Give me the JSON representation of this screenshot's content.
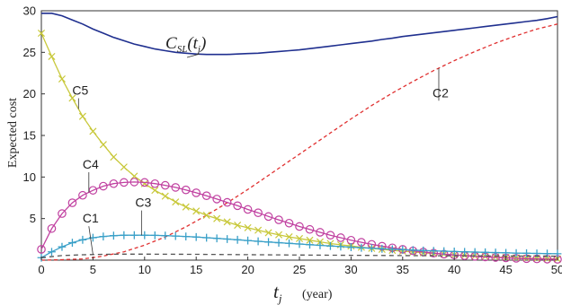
{
  "chart_data": {
    "type": "line",
    "title": "",
    "ylabel": "Expected cost",
    "xlabel_main": "t",
    "xlabel_sub": "j",
    "xlabel_unit": "(year)",
    "xlim": [
      0,
      50
    ],
    "ylim": [
      0,
      30
    ],
    "xticks": [
      0,
      5,
      10,
      15,
      20,
      25,
      30,
      35,
      40,
      45,
      50
    ],
    "yticks": [
      5,
      10,
      15,
      20,
      25,
      30
    ],
    "grid": false,
    "legend": "none",
    "series": [
      {
        "name": "CSL(tj)",
        "label_main": "C",
        "label_sub": "SL",
        "label_tail": "(t",
        "label_tail_sub": "j",
        "label_close": ")",
        "color": "#1f2f8f",
        "dash": "solid",
        "marker": "none",
        "x": [
          0,
          1,
          2,
          3,
          4,
          5,
          6,
          7,
          8,
          9,
          10,
          11,
          12,
          13,
          14,
          15,
          16,
          17,
          18,
          19,
          20,
          21,
          22,
          23,
          24,
          25,
          26,
          27,
          28,
          29,
          30,
          31,
          32,
          33,
          34,
          35,
          36,
          37,
          38,
          39,
          40,
          41,
          42,
          43,
          44,
          45,
          46,
          47,
          48,
          49,
          50
        ],
        "values": [
          29.7,
          29.7,
          29.4,
          28.9,
          28.4,
          27.8,
          27.3,
          26.8,
          26.4,
          26.0,
          25.7,
          25.4,
          25.2,
          25.0,
          24.9,
          24.8,
          24.75,
          24.75,
          24.75,
          24.8,
          24.85,
          24.9,
          25.0,
          25.1,
          25.2,
          25.3,
          25.45,
          25.6,
          25.75,
          25.9,
          26.05,
          26.2,
          26.35,
          26.55,
          26.7,
          26.9,
          27.05,
          27.2,
          27.35,
          27.5,
          27.65,
          27.8,
          27.95,
          28.1,
          28.25,
          28.4,
          28.55,
          28.7,
          28.85,
          29.05,
          29.3
        ]
      },
      {
        "name": "C2",
        "color": "#e03030",
        "dash": "dashed",
        "marker": "none",
        "x": [
          0,
          2,
          4,
          5,
          6,
          8,
          10,
          12,
          14,
          16,
          18,
          20,
          22,
          24,
          26,
          28,
          30,
          32,
          34,
          36,
          38,
          40,
          42,
          44,
          46,
          48,
          50
        ],
        "values": [
          0.0,
          0.05,
          0.15,
          0.3,
          0.5,
          1.0,
          1.8,
          2.8,
          4.0,
          5.4,
          6.9,
          8.5,
          10.2,
          11.9,
          13.6,
          15.3,
          17.0,
          18.6,
          20.1,
          21.5,
          22.8,
          24.0,
          25.1,
          26.1,
          27.0,
          27.8,
          28.4
        ]
      },
      {
        "name": "C5",
        "color": "#c8c83a",
        "dash": "solid",
        "marker": "x",
        "x": [
          0,
          1,
          2,
          3,
          4,
          5,
          6,
          7,
          8,
          9,
          10,
          11,
          12,
          13,
          14,
          15,
          16,
          17,
          18,
          19,
          20,
          21,
          22,
          23,
          24,
          25,
          26,
          27,
          28,
          29,
          30,
          31,
          32,
          33,
          34,
          35,
          36,
          37,
          38,
          39,
          40,
          41,
          42,
          43,
          44,
          45,
          46,
          47,
          48,
          49,
          50
        ],
        "values": [
          27.3,
          24.5,
          21.8,
          19.5,
          17.3,
          15.5,
          13.9,
          12.4,
          11.2,
          10.1,
          9.2,
          8.4,
          7.7,
          7.0,
          6.4,
          5.9,
          5.4,
          5.0,
          4.6,
          4.2,
          3.9,
          3.6,
          3.3,
          3.05,
          2.8,
          2.6,
          2.4,
          2.2,
          2.0,
          1.85,
          1.7,
          1.55,
          1.42,
          1.3,
          1.18,
          1.08,
          0.98,
          0.88,
          0.8,
          0.72,
          0.64,
          0.57,
          0.5,
          0.44,
          0.38,
          0.33,
          0.28,
          0.24,
          0.2,
          0.17,
          0.14
        ]
      },
      {
        "name": "C4",
        "color": "#c040a0",
        "dash": "solid",
        "marker": "circle",
        "x": [
          0,
          1,
          2,
          3,
          4,
          5,
          6,
          7,
          8,
          9,
          10,
          11,
          12,
          13,
          14,
          15,
          16,
          17,
          18,
          19,
          20,
          21,
          22,
          23,
          24,
          25,
          26,
          27,
          28,
          29,
          30,
          31,
          32,
          33,
          34,
          35,
          36,
          37,
          38,
          39,
          40,
          41,
          42,
          43,
          44,
          45,
          46,
          47,
          48,
          49,
          50
        ],
        "values": [
          1.3,
          3.8,
          5.6,
          6.9,
          7.8,
          8.4,
          8.9,
          9.2,
          9.35,
          9.4,
          9.35,
          9.2,
          9.0,
          8.75,
          8.45,
          8.1,
          7.75,
          7.35,
          6.95,
          6.55,
          6.1,
          5.7,
          5.25,
          4.85,
          4.45,
          4.05,
          3.7,
          3.35,
          3.0,
          2.7,
          2.4,
          2.15,
          1.9,
          1.68,
          1.48,
          1.3,
          1.12,
          0.98,
          0.84,
          0.72,
          0.62,
          0.53,
          0.45,
          0.38,
          0.32,
          0.27,
          0.22,
          0.18,
          0.15,
          0.12,
          0.1
        ]
      },
      {
        "name": "C3",
        "color": "#3aa0c8",
        "dash": "solid",
        "marker": "plus",
        "x": [
          0,
          1,
          2,
          3,
          4,
          5,
          6,
          7,
          8,
          9,
          10,
          11,
          12,
          13,
          14,
          15,
          16,
          17,
          18,
          19,
          20,
          21,
          22,
          23,
          24,
          25,
          26,
          27,
          28,
          29,
          30,
          31,
          32,
          33,
          34,
          35,
          36,
          37,
          38,
          39,
          40,
          41,
          42,
          43,
          44,
          45,
          46,
          47,
          48,
          49,
          50
        ],
        "values": [
          0.3,
          1.0,
          1.6,
          2.1,
          2.45,
          2.7,
          2.85,
          2.95,
          3.0,
          3.0,
          3.0,
          2.98,
          2.95,
          2.9,
          2.85,
          2.78,
          2.7,
          2.62,
          2.54,
          2.45,
          2.36,
          2.27,
          2.18,
          2.1,
          2.02,
          1.94,
          1.86,
          1.78,
          1.7,
          1.63,
          1.56,
          1.49,
          1.43,
          1.37,
          1.31,
          1.26,
          1.21,
          1.16,
          1.12,
          1.08,
          1.04,
          1.0,
          0.97,
          0.94,
          0.91,
          0.88,
          0.85,
          0.83,
          0.81,
          0.79,
          0.77
        ]
      },
      {
        "name": "C1",
        "color": "#555555",
        "dash": "dashed",
        "marker": "none",
        "x": [
          0,
          2,
          4,
          6,
          8,
          10,
          15,
          20,
          25,
          30,
          35,
          40,
          45,
          50
        ],
        "values": [
          0.3,
          0.55,
          0.65,
          0.7,
          0.72,
          0.72,
          0.7,
          0.66,
          0.62,
          0.58,
          0.55,
          0.52,
          0.5,
          0.48
        ]
      }
    ],
    "annotations": [
      {
        "text": "C5",
        "series": "C5",
        "at_x": 3.6,
        "label_x": 3.6,
        "label_y": 19.8,
        "leader": "short"
      },
      {
        "text": "C4",
        "series": "C4",
        "at_x": 4.6,
        "label_x": 4.6,
        "label_y": 10.9,
        "leader": "short"
      },
      {
        "text": "C3",
        "series": "C3",
        "at_x": 9.7,
        "label_x": 9.7,
        "label_y": 6.3,
        "leader": "short"
      },
      {
        "text": "C1",
        "series": "C1",
        "at_x": 5.0,
        "label_x": 4.6,
        "label_y": 4.4,
        "leader": "short"
      },
      {
        "text": "C2",
        "series": "C2",
        "at_x": 38.5,
        "label_x": 38.5,
        "label_y": 19.5,
        "leader": "short"
      }
    ]
  }
}
